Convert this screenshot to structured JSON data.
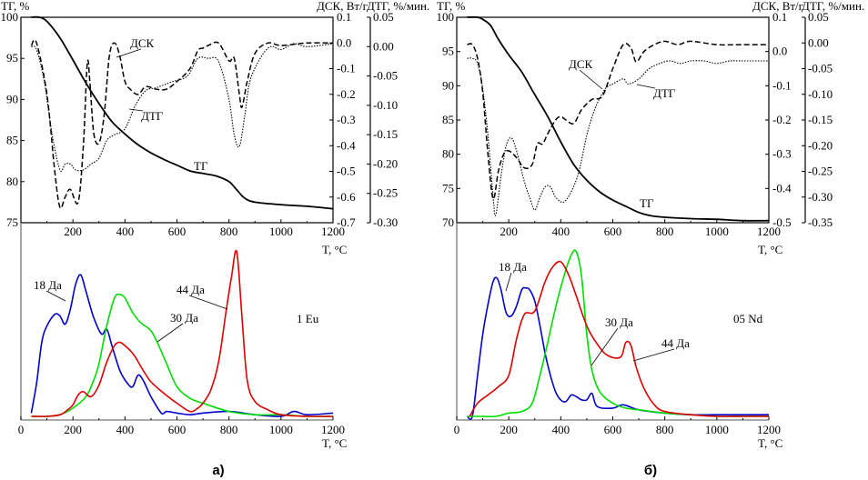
{
  "chart_data": [
    {
      "panel_label": "а)",
      "type": "line",
      "top": {
        "title": "",
        "xlabel": "T, °C",
        "xlim": [
          20,
          1200
        ],
        "xticks": [
          200,
          400,
          600,
          800,
          1000,
          1200
        ],
        "y_left": {
          "label": "ТГ, %",
          "lim": [
            75,
            100
          ],
          "ticks": [
            75,
            80,
            85,
            90,
            95,
            100
          ]
        },
        "y_right1": {
          "label": "ДСК, Вт/г",
          "lim": [
            -0.7,
            0.1
          ],
          "ticks": [
            "0.1",
            "0.0",
            "-0.1",
            "-0.2",
            "-0.3",
            "-0.4",
            "-0.5",
            "-0.6",
            "-0.7"
          ]
        },
        "y_right2": {
          "label": "ДТГ, %/мин.",
          "lim": [
            -0.3,
            0.05
          ],
          "ticks": [
            "0.05",
            "0.00",
            "-0.05",
            "-0.10",
            "-0.15",
            "-0.20",
            "-0.25",
            "-0.30"
          ]
        },
        "series": [
          {
            "name": "ТГ",
            "axis": "left",
            "style": "solid",
            "x": [
              40,
              70,
              100,
              150,
              200,
              250,
              300,
              350,
              400,
              450,
              500,
              550,
              600,
              650,
              700,
              750,
              800,
              830,
              860,
              900,
              1000,
              1100,
              1200
            ],
            "y": [
              100,
              100,
              99.5,
              97.5,
              94.8,
              92,
              89.5,
              87.3,
              85.8,
              84.5,
              83.5,
              82.7,
              82,
              81.3,
              81,
              80.7,
              80,
              79,
              78,
              77.5,
              77.2,
              77,
              76.7
            ]
          },
          {
            "name": "ДСК",
            "axis": "right1",
            "style": "dashed",
            "x": [
              40,
              60,
              100,
              130,
              150,
              170,
              190,
              220,
              240,
              255,
              265,
              280,
              300,
              320,
              340,
              360,
              380,
              400,
              420,
              450,
              480,
              520,
              560,
              600,
              650,
              680,
              700,
              720,
              760,
              800,
              820,
              840,
              850,
              870,
              900,
              950,
              1000,
              1100,
              1200
            ],
            "y": [
              -0.01,
              0.0,
              -0.2,
              -0.5,
              -0.64,
              -0.6,
              -0.57,
              -0.62,
              -0.4,
              -0.08,
              -0.15,
              -0.35,
              -0.39,
              -0.28,
              -0.05,
              0.0,
              -0.05,
              -0.15,
              -0.18,
              -0.2,
              -0.17,
              -0.18,
              -0.18,
              -0.15,
              -0.1,
              -0.03,
              -0.02,
              -0.01,
              0.0,
              -0.07,
              -0.06,
              -0.2,
              -0.25,
              -0.15,
              -0.04,
              0.0,
              -0.01,
              0.0,
              0.0
            ]
          },
          {
            "name": "ДТГ",
            "axis": "right2",
            "style": "dotted",
            "x": [
              40,
              60,
              90,
              120,
              150,
              170,
              190,
              210,
              240,
              270,
              300,
              330,
              360,
              400,
              440,
              480,
              520,
              580,
              640,
              680,
              720,
              760,
              800,
              820,
              840,
              860,
              880,
              920,
              960,
              1000,
              1050,
              1100,
              1200
            ],
            "y": [
              0.0,
              -0.005,
              -0.06,
              -0.15,
              -0.21,
              -0.2,
              -0.2,
              -0.21,
              -0.21,
              -0.2,
              -0.19,
              -0.16,
              -0.15,
              -0.14,
              -0.1,
              -0.075,
              -0.07,
              -0.06,
              -0.05,
              -0.02,
              -0.02,
              -0.025,
              -0.09,
              -0.15,
              -0.17,
              -0.12,
              -0.06,
              -0.02,
              0.0,
              -0.005,
              0.005,
              0.0,
              0.005
            ]
          }
        ],
        "annotations": [
          "ДСК",
          "ДТГ",
          "ТГ"
        ]
      },
      "bottom": {
        "xlabel": "T, °C",
        "xlim": [
          0,
          1200
        ],
        "xticks": [
          0,
          200,
          400,
          600,
          800,
          1000,
          1200
        ],
        "sample_label": "1 Eu",
        "series": [
          {
            "name": "18 Да",
            "color": "#0000cc",
            "x": [
              40,
              60,
              80,
              100,
              130,
              150,
              170,
              190,
              210,
              230,
              250,
              280,
              310,
              330,
              350,
              380,
              410,
              430,
              450,
              470,
              500,
              540,
              560,
              600,
              650,
              700,
              800,
              900,
              1000,
              1050,
              1100,
              1200
            ],
            "y": [
              0.02,
              0.2,
              0.45,
              0.55,
              0.62,
              0.61,
              0.56,
              0.65,
              0.8,
              0.86,
              0.76,
              0.6,
              0.5,
              0.53,
              0.43,
              0.28,
              0.2,
              0.18,
              0.25,
              0.22,
              0.12,
              0.02,
              0.03,
              0.02,
              0.01,
              0.02,
              0.03,
              0.01,
              0.0,
              0.03,
              0.01,
              0.02
            ]
          },
          {
            "name": "30 Да",
            "color": "#00dd00",
            "x": [
              40,
              100,
              150,
              200,
              250,
              280,
              300,
              330,
              360,
              380,
              400,
              430,
              460,
              500,
              530,
              560,
              600,
              650,
              700,
              800,
              900,
              1000,
              1100,
              1200
            ],
            "y": [
              0.0,
              0.0,
              0.01,
              0.05,
              0.12,
              0.22,
              0.32,
              0.55,
              0.72,
              0.74,
              0.72,
              0.63,
              0.57,
              0.52,
              0.43,
              0.32,
              0.18,
              0.11,
              0.08,
              0.03,
              0.01,
              0.01,
              0.0,
              0.0
            ]
          },
          {
            "name": "44 Да",
            "color": "#dd0000",
            "x": [
              40,
              100,
              150,
              180,
              200,
              220,
              240,
              270,
              300,
              330,
              360,
              380,
              400,
              420,
              440,
              470,
              500,
              550,
              600,
              650,
              680,
              700,
              730,
              760,
              790,
              810,
              830,
              850,
              870,
              900,
              950,
              1000,
              1100,
              1200
            ],
            "y": [
              0.0,
              0.0,
              0.01,
              0.04,
              0.07,
              0.13,
              0.15,
              0.12,
              0.19,
              0.33,
              0.43,
              0.45,
              0.43,
              0.4,
              0.36,
              0.28,
              0.21,
              0.14,
              0.08,
              0.03,
              0.05,
              0.08,
              0.16,
              0.33,
              0.65,
              0.85,
              1.0,
              0.6,
              0.22,
              0.09,
              0.04,
              0.01,
              0.0,
              0.0
            ]
          }
        ]
      }
    },
    {
      "panel_label": "б)",
      "type": "line",
      "top": {
        "title": "",
        "xlabel": "T, °C",
        "xlim": [
          20,
          1200
        ],
        "xticks": [
          200,
          400,
          600,
          800,
          1000,
          1200
        ],
        "y_left": {
          "label": "ТГ, %",
          "lim": [
            70,
            100
          ],
          "ticks": [
            70,
            75,
            80,
            85,
            90,
            95,
            100
          ]
        },
        "y_right1": {
          "label": "ДСК, Вт/г",
          "lim": [
            -0.5,
            0.1
          ],
          "ticks": [
            "0.1",
            "0.0",
            "-0.1",
            "-0.2",
            "-0.3",
            "-0.4",
            "-0.5"
          ]
        },
        "y_right2": {
          "label": "ДТГ, %/мин.",
          "lim": [
            -0.35,
            0.05
          ],
          "ticks": [
            "0.05",
            "0.00",
            "-0.05",
            "-0.10",
            "-0.15",
            "-0.20",
            "-0.25",
            "-0.30",
            "-0.35"
          ]
        },
        "series": [
          {
            "name": "ТГ",
            "axis": "left",
            "style": "solid",
            "x": [
              40,
              80,
              100,
              130,
              160,
              200,
              250,
              300,
              350,
              400,
              450,
              500,
              550,
              600,
              650,
              700,
              750,
              800,
              900,
              1000,
              1100,
              1200
            ],
            "y": [
              100,
              100,
              99.7,
              98.8,
              96.8,
              94.5,
              92,
              88.7,
              85.5,
              81.8,
              78.5,
              76.2,
              74.5,
              73.3,
              72.4,
              71.5,
              71,
              70.8,
              70.6,
              70.5,
              70.3,
              70.3
            ]
          },
          {
            "name": "ДСК",
            "axis": "right1",
            "style": "dashed",
            "x": [
              40,
              60,
              80,
              100,
              120,
              140,
              160,
              180,
              200,
              230,
              260,
              290,
              310,
              330,
              350,
              380,
              400,
              420,
              450,
              480,
              520,
              560,
              600,
              640,
              670,
              690,
              720,
              760,
              800,
              850,
              900,
              1000,
              1100,
              1200
            ],
            "y": [
              0.02,
              0.02,
              -0.02,
              -0.12,
              -0.3,
              -0.43,
              -0.35,
              -0.3,
              -0.29,
              -0.31,
              -0.34,
              -0.33,
              -0.27,
              -0.27,
              -0.24,
              -0.2,
              -0.19,
              -0.2,
              -0.21,
              -0.17,
              -0.14,
              -0.13,
              -0.05,
              0.02,
              0.01,
              -0.03,
              0.0,
              0.02,
              0.03,
              0.02,
              0.03,
              0.02,
              0.02,
              0.02
            ]
          },
          {
            "name": "ДТГ",
            "axis": "right2",
            "style": "dotted",
            "x": [
              40,
              60,
              80,
              100,
              120,
              140,
              150,
              170,
              190,
              210,
              230,
              260,
              280,
              300,
              320,
              340,
              360,
              380,
              410,
              440,
              470,
              500,
              530,
              570,
              600,
              640,
              660,
              700,
              740,
              780,
              820,
              860,
              900,
              950,
              1000,
              1050,
              1100,
              1200
            ],
            "y": [
              -0.03,
              -0.03,
              -0.04,
              -0.09,
              -0.18,
              -0.3,
              -0.335,
              -0.26,
              -0.2,
              -0.185,
              -0.21,
              -0.27,
              -0.3,
              -0.325,
              -0.3,
              -0.28,
              -0.28,
              -0.3,
              -0.31,
              -0.29,
              -0.25,
              -0.18,
              -0.13,
              -0.09,
              -0.08,
              -0.07,
              -0.08,
              -0.07,
              -0.05,
              -0.04,
              -0.035,
              -0.04,
              -0.035,
              -0.035,
              -0.04,
              -0.035,
              -0.035,
              -0.035
            ]
          }
        ],
        "annotations": [
          "ДСК",
          "ДТГ",
          "ТГ"
        ]
      },
      "bottom": {
        "xlabel": "T, °C",
        "xlim": [
          0,
          1200
        ],
        "xticks": [
          0,
          200,
          400,
          600,
          800,
          1000,
          1200
        ],
        "sample_label": "05 Nd",
        "series": [
          {
            "name": "18 Да",
            "color": "#0000cc",
            "x": [
              40,
              60,
              80,
              100,
              120,
              140,
              155,
              170,
              190,
              210,
              230,
              250,
              265,
              280,
              300,
              320,
              340,
              360,
              380,
              400,
              420,
              440,
              460,
              480,
              500,
              520,
              540,
              600,
              640,
              700,
              800,
              900,
              1000,
              1100,
              1200
            ],
            "y": [
              0.0,
              0.0,
              0.25,
              0.5,
              0.68,
              0.82,
              0.84,
              0.77,
              0.63,
              0.61,
              0.67,
              0.77,
              0.78,
              0.77,
              0.7,
              0.55,
              0.38,
              0.25,
              0.15,
              0.1,
              0.09,
              0.13,
              0.12,
              0.1,
              0.1,
              0.14,
              0.06,
              0.05,
              0.07,
              0.04,
              0.02,
              0.01,
              0.01,
              0.01,
              0.01
            ]
          },
          {
            "name": "30 Да",
            "color": "#00dd00",
            "x": [
              40,
              100,
              150,
              200,
              250,
              290,
              320,
              350,
              380,
              410,
              440,
              460,
              480,
              500,
              520,
              550,
              600,
              650,
              700,
              800,
              900,
              1000,
              1100,
              1200
            ],
            "y": [
              0.0,
              0.0,
              0.0,
              0.02,
              0.03,
              0.08,
              0.25,
              0.45,
              0.66,
              0.84,
              0.98,
              1.0,
              0.85,
              0.5,
              0.28,
              0.15,
              0.08,
              0.05,
              0.04,
              0.02,
              0.01,
              0.0,
              0.0,
              0.0
            ]
          },
          {
            "name": "44 Да",
            "color": "#dd0000",
            "x": [
              50,
              80,
              120,
              160,
              200,
              230,
              260,
              300,
              340,
              370,
              400,
              430,
              460,
              500,
              540,
              580,
              630,
              650,
              670,
              690,
              720,
              760,
              800,
              900,
              1000,
              1100,
              1200
            ],
            "y": [
              0.0,
              0.08,
              0.13,
              0.18,
              0.25,
              0.47,
              0.62,
              0.64,
              0.82,
              0.91,
              0.94,
              0.86,
              0.73,
              0.55,
              0.44,
              0.37,
              0.36,
              0.45,
              0.43,
              0.3,
              0.17,
              0.07,
              0.03,
              0.01,
              0.0,
              0.0,
              0.0
            ]
          }
        ]
      }
    }
  ]
}
